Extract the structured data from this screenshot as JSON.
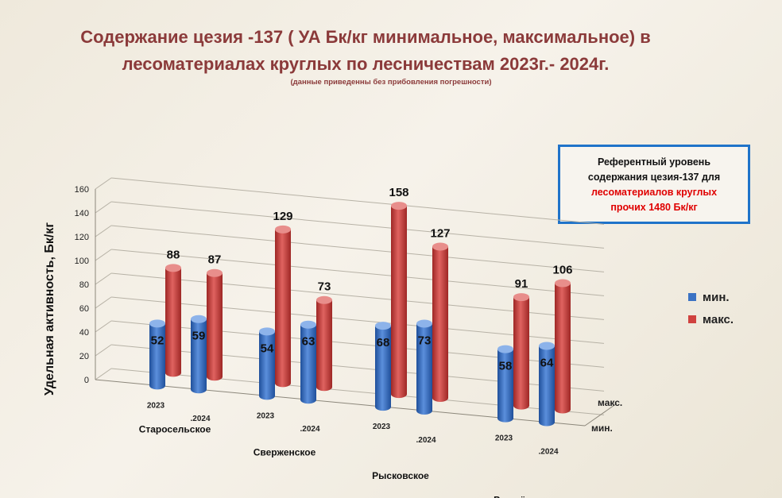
{
  "title_line1": "Содержание цезия -137 ( УА Бк/кг минимальное, максимальное) в",
  "title_line2": "лесоматериалах круглых по лесничествам  2023г.- 2024г.",
  "subtitle": "(данные приведенны без прибовления  погрешности)",
  "reference": {
    "line1": "Референтный уровень",
    "line2": "содержания  цезия-137 для",
    "line3": "лесоматериалов круглых",
    "line4": "прочих  1480 Бк/кг"
  },
  "legend": {
    "min_label": "мин.",
    "max_label": "макс.",
    "min_color": "#3b72c4",
    "max_color": "#d0423f"
  },
  "chart_data": {
    "type": "bar",
    "ylabel": "Удельная активность,  Бк/кг",
    "ylim": [
      0,
      160
    ],
    "yticks": [
      0,
      20,
      40,
      60,
      80,
      100,
      120,
      140,
      160
    ],
    "depth_labels": [
      "макс.",
      "мин."
    ],
    "groups": [
      {
        "name": "Старосельское",
        "years": [
          "2023",
          ".2024"
        ],
        "min": [
          52,
          59
        ],
        "max": [
          88,
          87
        ]
      },
      {
        "name": "Сверженское",
        "years": [
          "2023",
          ".2024"
        ],
        "min": [
          54,
          63
        ],
        "max": [
          129,
          73
        ]
      },
      {
        "name": "Рысковское",
        "years": [
          "2023",
          ".2024"
        ],
        "min": [
          68,
          73
        ],
        "max": [
          158,
          127
        ]
      },
      {
        "name": "Рогачёвское",
        "years": [
          "2023",
          ".2024"
        ],
        "min": [
          58,
          64
        ],
        "max": [
          91,
          106
        ]
      }
    ]
  }
}
